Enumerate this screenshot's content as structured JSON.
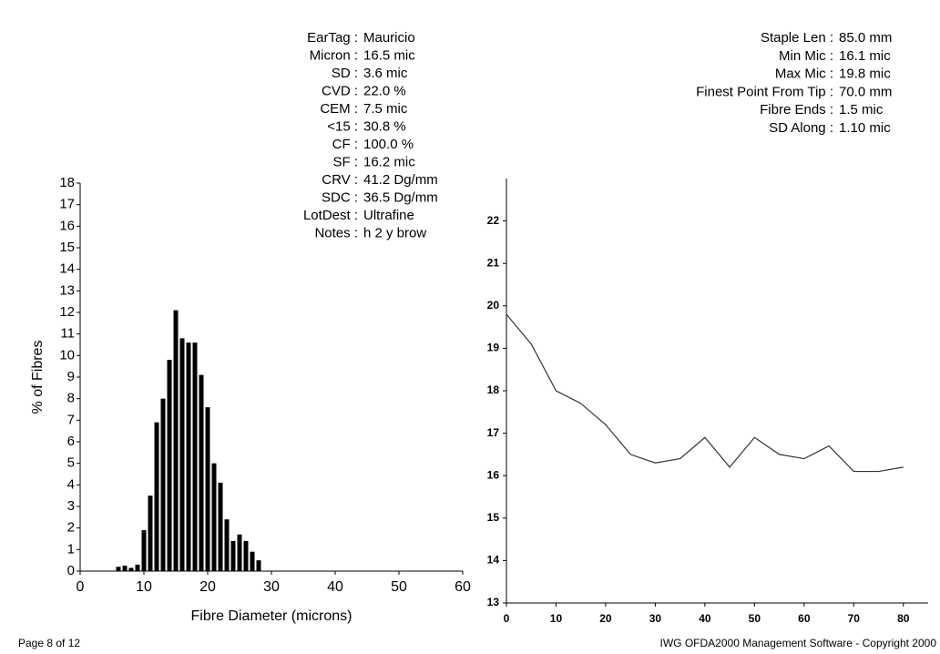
{
  "stats_left": [
    {
      "label": "EarTag :",
      "value": "Mauricio"
    },
    {
      "label": "Micron :",
      "value": "16.5 mic"
    },
    {
      "label": "SD :",
      "value": "3.6 mic"
    },
    {
      "label": "CVD :",
      "value": "22.0 %"
    },
    {
      "label": "CEM :",
      "value": "7.5 mic"
    },
    {
      "label": "<15 :",
      "value": "30.8 %"
    },
    {
      "label": "CF :",
      "value": "100.0 %"
    },
    {
      "label": "SF :",
      "value": "16.2 mic"
    },
    {
      "label": "CRV :",
      "value": "41.2 Dg/mm"
    },
    {
      "label": "SDC :",
      "value": "36.5 Dg/mm"
    },
    {
      "label": "LotDest :",
      "value": "Ultrafine"
    },
    {
      "label": "Notes :",
      "value": "h 2 y brow"
    }
  ],
  "stats_right": [
    {
      "label": "Staple Len :",
      "value": "85.0 mm"
    },
    {
      "label": "Min Mic :",
      "value": "16.1 mic"
    },
    {
      "label": "Max Mic :",
      "value": "19.8 mic"
    },
    {
      "label": "Finest Point From Tip :",
      "value": "70.0 mm"
    },
    {
      "label": "Fibre Ends :",
      "value": "1.5 mic"
    },
    {
      "label": "SD Along :",
      "value": "1.10 mic"
    }
  ],
  "footer": {
    "page": "Page 8 of 12",
    "software": "IWG OFDA2000 Management Software - Copyright 2000"
  },
  "chart_data": [
    {
      "type": "histogram",
      "xlabel": "Fibre Diameter (microns)",
      "ylabel": "% of Fibres",
      "color": "#000000",
      "bins": [
        5.5,
        6.5,
        7.5,
        8.5,
        9.5,
        10.5,
        11.5,
        12.5,
        13.5,
        14.5,
        15.5,
        16.5,
        17.5,
        18.5,
        19.5,
        20.5,
        21.5,
        22.5,
        23.5,
        24.5,
        25.5,
        26.5,
        27.5,
        28.5
      ],
      "counts": [
        0.2,
        0.25,
        0.15,
        0.3,
        1.9,
        3.5,
        6.9,
        8.0,
        9.8,
        12.1,
        10.8,
        10.6,
        10.6,
        9.1,
        7.6,
        5.0,
        4.1,
        2.4,
        1.4,
        1.7,
        1.4,
        0.9,
        0.5
      ],
      "xlim": [
        0,
        60
      ],
      "xticks": [
        0,
        10,
        20,
        30,
        40,
        50,
        60
      ],
      "ylim": [
        0,
        18
      ],
      "yticks": [
        0,
        1,
        2,
        3,
        4,
        5,
        6,
        7,
        8,
        9,
        10,
        11,
        12,
        13,
        14,
        15,
        16,
        17,
        18
      ]
    },
    {
      "type": "line",
      "color": "#333333",
      "x": [
        0,
        5,
        10,
        15,
        20,
        25,
        30,
        35,
        40,
        45,
        50,
        55,
        60,
        65,
        70,
        75,
        80
      ],
      "values": [
        19.8,
        19.1,
        18.0,
        17.7,
        17.2,
        16.5,
        16.3,
        16.4,
        16.9,
        16.2,
        16.9,
        16.5,
        16.4,
        16.7,
        16.1,
        16.1,
        16.2
      ],
      "xlim": [
        0,
        85
      ],
      "xticks": [
        0,
        10,
        20,
        30,
        40,
        50,
        60,
        70,
        80
      ],
      "ylim": [
        13,
        23
      ],
      "yticks": [
        13,
        14,
        15,
        16,
        17,
        18,
        19,
        20,
        21,
        22
      ]
    }
  ]
}
